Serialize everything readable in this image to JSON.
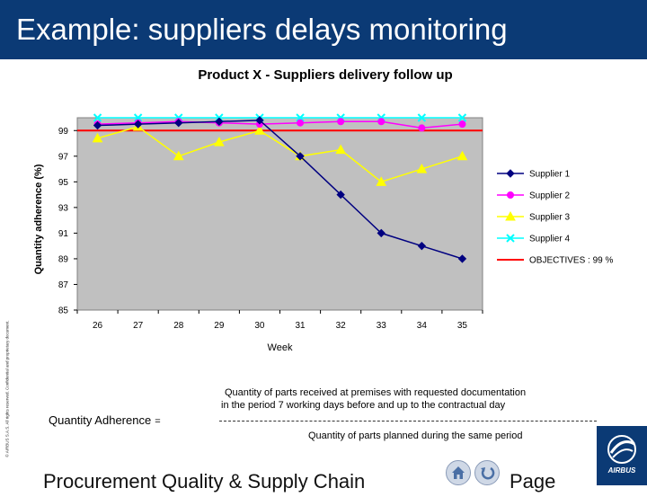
{
  "slide": {
    "title": "Example: suppliers delays monitoring",
    "side_note": "© AIRBUS S.A.S. All rights reserved. Confidential and proprietary document.",
    "footer_left": "Procurement Quality & Supply Chain",
    "footer_right": "Page"
  },
  "formula": {
    "label": "Quantity Adherence",
    "equals": "=",
    "numerator_line1": "Quantity of parts received at premises with requested documentation",
    "numerator_line2": "in the period 7 working days before and up to the contractual day",
    "denominator": "Quantity of parts planned during the same period"
  },
  "logo": {
    "text": "AIRBUS"
  },
  "icons": {
    "home": "home-icon",
    "back": "back-arrow-icon",
    "logo": "airbus-logo-icon"
  },
  "chart_data": {
    "type": "line",
    "title": "Product X  - Suppliers delivery follow up",
    "xlabel": "Week",
    "ylabel": "Quantity adherence (%)",
    "ylim": [
      85,
      100
    ],
    "yticks": [
      85,
      87,
      89,
      91,
      93,
      95,
      97,
      99
    ],
    "categories": [
      "26",
      "27",
      "28",
      "29",
      "30",
      "31",
      "32",
      "33",
      "34",
      "35"
    ],
    "grid": false,
    "legend_position": "right",
    "plot_background": "#c0c0c0",
    "series": [
      {
        "name": "Supplier 1",
        "color": "#000080",
        "marker": "diamond",
        "values": [
          99.4,
          99.5,
          99.6,
          99.7,
          99.8,
          97.0,
          94.0,
          91.0,
          90.0,
          89.0
        ]
      },
      {
        "name": "Supplier 2",
        "color": "#ff00ff",
        "marker": "circle",
        "values": [
          99.5,
          99.6,
          99.7,
          99.6,
          99.5,
          99.6,
          99.7,
          99.7,
          99.2,
          99.5
        ]
      },
      {
        "name": "Supplier 3",
        "color": "#ffff00",
        "marker": "triangle",
        "values": [
          98.4,
          99.3,
          97.0,
          98.1,
          99.0,
          97.0,
          97.5,
          95.0,
          96.0,
          97.0
        ]
      },
      {
        "name": "Supplier 4",
        "color": "#00ffff",
        "marker": "x",
        "values": [
          100,
          100,
          100,
          100,
          100,
          100,
          100,
          100,
          100,
          100
        ]
      }
    ],
    "reference_lines": [
      {
        "name": "OBJECTIVES : 99 %",
        "color": "#ff0000",
        "value": 99
      }
    ]
  }
}
